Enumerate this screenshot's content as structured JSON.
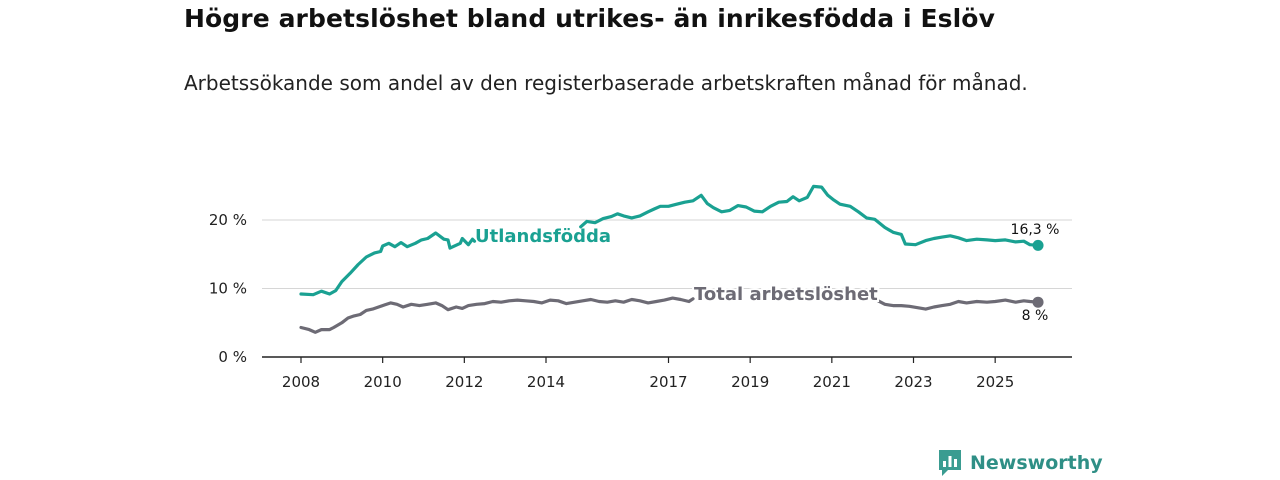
{
  "header": {
    "title": "Högre arbetslöshet bland utrikes- än inrikesfödda i Eslöv",
    "subtitle": "Arbetssökande som andel av den registerbaserade arbetskraften månad för månad."
  },
  "brand": {
    "name": "Newsworthy",
    "icon": "newsworthy-logo-icon",
    "color": "#3a9c91"
  },
  "chart_data": {
    "type": "line",
    "title": "Högre arbetslöshet bland utrikes- än inrikesfödda i Eslöv",
    "subtitle": "Arbetssökande som andel av den registerbaserade arbetskraften månad för månad.",
    "xlabel": "",
    "ylabel": "",
    "xlim": [
      2008,
      2026.3
    ],
    "ylim": [
      0,
      20
    ],
    "grid": true,
    "x_ticks": [
      {
        "value": 2008,
        "label": "2008"
      },
      {
        "value": 2010,
        "label": "2010"
      },
      {
        "value": 2012,
        "label": "2012"
      },
      {
        "value": 2014,
        "label": "2014"
      },
      {
        "value": 2017,
        "label": "2017"
      },
      {
        "value": 2019,
        "label": "2019"
      },
      {
        "value": 2021,
        "label": "2021"
      },
      {
        "value": 2023,
        "label": "2023"
      },
      {
        "value": 2025,
        "label": "2025"
      }
    ],
    "y_ticks": [
      {
        "value": 0,
        "label": "0 %"
      },
      {
        "value": 10,
        "label": "10 %"
      },
      {
        "value": 20,
        "label": "20 %"
      }
    ],
    "series": [
      {
        "name": "Utlandsfödda",
        "color": "#1aa192",
        "end_label": "16,3 %",
        "points": [
          [
            2008.0,
            9.2
          ],
          [
            2008.3,
            9.1
          ],
          [
            2008.5,
            9.6
          ],
          [
            2008.7,
            9.2
          ],
          [
            2008.85,
            9.7
          ],
          [
            2009.0,
            11.0
          ],
          [
            2009.2,
            12.2
          ],
          [
            2009.4,
            13.5
          ],
          [
            2009.6,
            14.6
          ],
          [
            2009.8,
            15.2
          ],
          [
            2009.95,
            15.4
          ],
          [
            2010.0,
            16.2
          ],
          [
            2010.15,
            16.6
          ],
          [
            2010.3,
            16.1
          ],
          [
            2010.45,
            16.7
          ],
          [
            2010.6,
            16.1
          ],
          [
            2010.8,
            16.6
          ],
          [
            2010.95,
            17.1
          ],
          [
            2011.1,
            17.3
          ],
          [
            2011.3,
            18.1
          ],
          [
            2011.5,
            17.2
          ],
          [
            2011.6,
            17.1
          ],
          [
            2011.65,
            15.9
          ],
          [
            2011.9,
            16.6
          ],
          [
            2011.95,
            17.3
          ],
          [
            2012.1,
            16.4
          ],
          [
            2012.2,
            17.2
          ],
          [
            2012.25,
            16.9
          ],
          [
            2014.85,
            19.0
          ],
          [
            2015.0,
            19.8
          ],
          [
            2015.2,
            19.6
          ],
          [
            2015.4,
            20.2
          ],
          [
            2015.6,
            20.5
          ],
          [
            2015.75,
            20.9
          ],
          [
            2015.9,
            20.6
          ],
          [
            2016.1,
            20.3
          ],
          [
            2016.3,
            20.6
          ],
          [
            2016.5,
            21.2
          ],
          [
            2016.65,
            21.6
          ],
          [
            2016.8,
            22.0
          ],
          [
            2017.0,
            22.0
          ],
          [
            2017.2,
            22.3
          ],
          [
            2017.4,
            22.6
          ],
          [
            2017.6,
            22.8
          ],
          [
            2017.8,
            23.6
          ],
          [
            2017.95,
            22.4
          ],
          [
            2018.1,
            21.8
          ],
          [
            2018.3,
            21.2
          ],
          [
            2018.5,
            21.4
          ],
          [
            2018.7,
            22.1
          ],
          [
            2018.9,
            21.9
          ],
          [
            2019.1,
            21.3
          ],
          [
            2019.3,
            21.2
          ],
          [
            2019.5,
            22.0
          ],
          [
            2019.7,
            22.6
          ],
          [
            2019.9,
            22.7
          ],
          [
            2020.05,
            23.4
          ],
          [
            2020.2,
            22.8
          ],
          [
            2020.4,
            23.3
          ],
          [
            2020.55,
            24.9
          ],
          [
            2020.75,
            24.8
          ],
          [
            2020.9,
            23.6
          ],
          [
            2021.05,
            22.9
          ],
          [
            2021.2,
            22.3
          ],
          [
            2021.45,
            22.0
          ],
          [
            2021.65,
            21.2
          ],
          [
            2021.85,
            20.3
          ],
          [
            2022.05,
            20.1
          ],
          [
            2022.3,
            18.9
          ],
          [
            2022.5,
            18.2
          ],
          [
            2022.7,
            17.9
          ],
          [
            2022.8,
            16.5
          ],
          [
            2023.05,
            16.4
          ],
          [
            2023.3,
            17.0
          ],
          [
            2023.5,
            17.3
          ],
          [
            2023.7,
            17.5
          ],
          [
            2023.9,
            17.7
          ],
          [
            2024.1,
            17.4
          ],
          [
            2024.3,
            17.0
          ],
          [
            2024.55,
            17.2
          ],
          [
            2024.8,
            17.1
          ],
          [
            2025.0,
            17.0
          ],
          [
            2025.25,
            17.1
          ],
          [
            2025.5,
            16.8
          ],
          [
            2025.7,
            16.9
          ],
          [
            2025.85,
            16.4
          ],
          [
            2026.05,
            16.3
          ]
        ]
      },
      {
        "name": "Total arbetslöshet",
        "color": "#6d6b75",
        "end_label": "8 %",
        "points": [
          [
            2008.0,
            4.3
          ],
          [
            2008.2,
            4.0
          ],
          [
            2008.35,
            3.6
          ],
          [
            2008.5,
            4.0
          ],
          [
            2008.7,
            4.0
          ],
          [
            2008.8,
            4.3
          ],
          [
            2009.0,
            5.0
          ],
          [
            2009.15,
            5.7
          ],
          [
            2009.3,
            6.0
          ],
          [
            2009.45,
            6.2
          ],
          [
            2009.6,
            6.8
          ],
          [
            2009.75,
            7.0
          ],
          [
            2009.9,
            7.3
          ],
          [
            2010.05,
            7.6
          ],
          [
            2010.2,
            7.9
          ],
          [
            2010.35,
            7.7
          ],
          [
            2010.5,
            7.3
          ],
          [
            2010.7,
            7.7
          ],
          [
            2010.9,
            7.5
          ],
          [
            2011.1,
            7.7
          ],
          [
            2011.3,
            7.9
          ],
          [
            2011.45,
            7.5
          ],
          [
            2011.6,
            6.9
          ],
          [
            2011.8,
            7.3
          ],
          [
            2011.95,
            7.1
          ],
          [
            2012.1,
            7.5
          ],
          [
            2012.3,
            7.7
          ],
          [
            2012.5,
            7.8
          ],
          [
            2012.7,
            8.1
          ],
          [
            2012.9,
            8.0
          ],
          [
            2013.1,
            8.2
          ],
          [
            2013.3,
            8.3
          ],
          [
            2013.5,
            8.2
          ],
          [
            2013.7,
            8.1
          ],
          [
            2013.9,
            7.9
          ],
          [
            2014.1,
            8.3
          ],
          [
            2014.3,
            8.2
          ],
          [
            2014.5,
            7.8
          ],
          [
            2014.7,
            8.0
          ],
          [
            2014.9,
            8.2
          ],
          [
            2015.1,
            8.4
          ],
          [
            2015.3,
            8.1
          ],
          [
            2015.5,
            8.0
          ],
          [
            2015.7,
            8.2
          ],
          [
            2015.9,
            8.0
          ],
          [
            2016.1,
            8.4
          ],
          [
            2016.3,
            8.2
          ],
          [
            2016.5,
            7.9
          ],
          [
            2016.7,
            8.1
          ],
          [
            2016.9,
            8.3
          ],
          [
            2017.1,
            8.6
          ],
          [
            2017.3,
            8.4
          ],
          [
            2017.5,
            8.1
          ],
          [
            2017.6,
            8.5
          ],
          [
            2022.1,
            8.3
          ],
          [
            2022.3,
            7.7
          ],
          [
            2022.5,
            7.5
          ],
          [
            2022.7,
            7.5
          ],
          [
            2022.9,
            7.4
          ],
          [
            2023.1,
            7.2
          ],
          [
            2023.3,
            7.0
          ],
          [
            2023.5,
            7.3
          ],
          [
            2023.7,
            7.5
          ],
          [
            2023.9,
            7.7
          ],
          [
            2024.1,
            8.1
          ],
          [
            2024.3,
            7.9
          ],
          [
            2024.55,
            8.1
          ],
          [
            2024.8,
            8.0
          ],
          [
            2025.0,
            8.1
          ],
          [
            2025.25,
            8.3
          ],
          [
            2025.5,
            8.0
          ],
          [
            2025.7,
            8.2
          ],
          [
            2025.85,
            8.1
          ],
          [
            2026.05,
            8.0
          ]
        ]
      }
    ]
  }
}
